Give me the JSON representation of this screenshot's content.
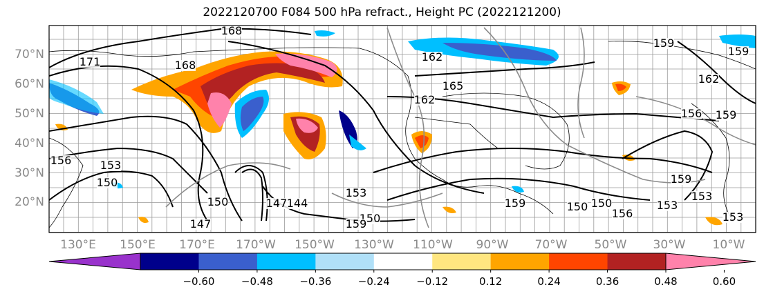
{
  "title": "2022120700 F084 500 hPa refract., Height PC (2022121200)",
  "map": {
    "lat_labels": [
      "70°N",
      "60°N",
      "50°N",
      "40°N",
      "30°N",
      "20°N"
    ],
    "lon_labels": [
      "130°E",
      "150°E",
      "170°E",
      "170°W",
      "150°W",
      "130°W",
      "110°W",
      "90°W",
      "70°W",
      "50°W",
      "30°W",
      "10°W"
    ],
    "contour_labels": [
      "168",
      "171",
      "168",
      "162",
      "162",
      "165",
      "159",
      "159",
      "162",
      "159",
      "156",
      "156",
      "153",
      "150",
      "150",
      "147",
      "147",
      "144",
      "153",
      "150",
      "150",
      "159",
      "159",
      "156",
      "153",
      "153",
      "159",
      "153",
      "150"
    ]
  },
  "colorbar": {
    "colors": [
      "#9932cc",
      "#00008b",
      "#3a5fcd",
      "#00bfff",
      "#b0e0f8",
      "#ffffff",
      "#ffe680",
      "#ffa500",
      "#ff4500",
      "#b22222",
      "#ff82ab"
    ],
    "ticks": [
      "−0.60",
      "−0.48",
      "−0.36",
      "−0.24",
      "−0.12",
      "0.12",
      "0.24",
      "0.36",
      "0.48",
      "0.60"
    ]
  }
}
